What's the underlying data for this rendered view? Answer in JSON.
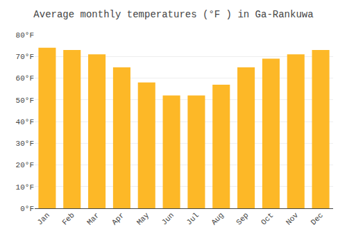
{
  "chart_data": {
    "type": "bar",
    "title": "Average monthly temperatures (°F ) in Ga-Rankuwa",
    "categories": [
      "Jan",
      "Feb",
      "Mar",
      "Apr",
      "May",
      "Jun",
      "Jul",
      "Aug",
      "Sep",
      "Oct",
      "Nov",
      "Dec"
    ],
    "values": [
      74,
      73,
      71,
      65,
      58,
      52,
      52,
      57,
      65,
      69,
      71,
      73
    ],
    "color": "#FDB827",
    "ylim": [
      0,
      80
    ],
    "yticks": [
      {
        "value": 0,
        "label": "0°F"
      },
      {
        "value": 10,
        "label": "10°F"
      },
      {
        "value": 20,
        "label": "20°F"
      },
      {
        "value": 30,
        "label": "30°F"
      },
      {
        "value": 40,
        "label": "40°F"
      },
      {
        "value": 50,
        "label": "50°F"
      },
      {
        "value": 60,
        "label": "60°F"
      },
      {
        "value": 70,
        "label": "70°F"
      },
      {
        "value": 80,
        "label": "80°F"
      }
    ],
    "grid": true
  }
}
